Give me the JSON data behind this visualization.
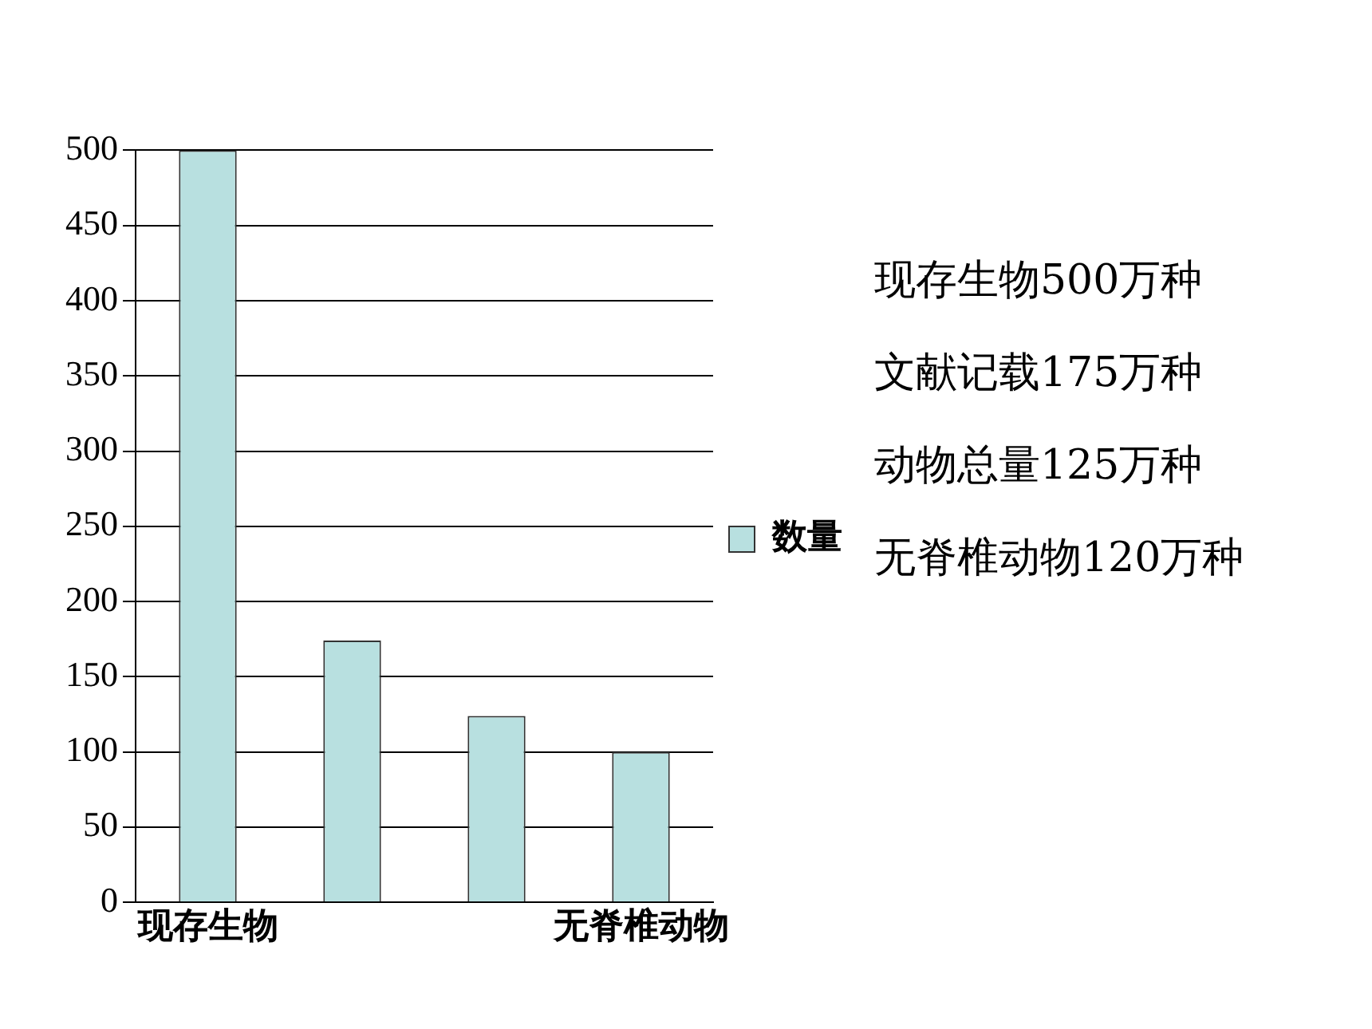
{
  "chart_data": {
    "type": "bar",
    "categories": [
      "现存生物",
      null,
      null,
      "无脊椎动物"
    ],
    "series": [
      {
        "name": "数量",
        "color": "#b8e0e0",
        "values": [
          500,
          174,
          124,
          100
        ]
      }
    ],
    "ylim": [
      0,
      500
    ],
    "yticks": [
      0,
      50,
      100,
      150,
      200,
      250,
      300,
      350,
      400,
      450,
      500
    ],
    "grid": "y",
    "legend": "right",
    "annotations": [
      "现存生物500万种",
      "文献记载175万种",
      "动物总量125万种",
      "无脊椎动物120万种"
    ]
  }
}
